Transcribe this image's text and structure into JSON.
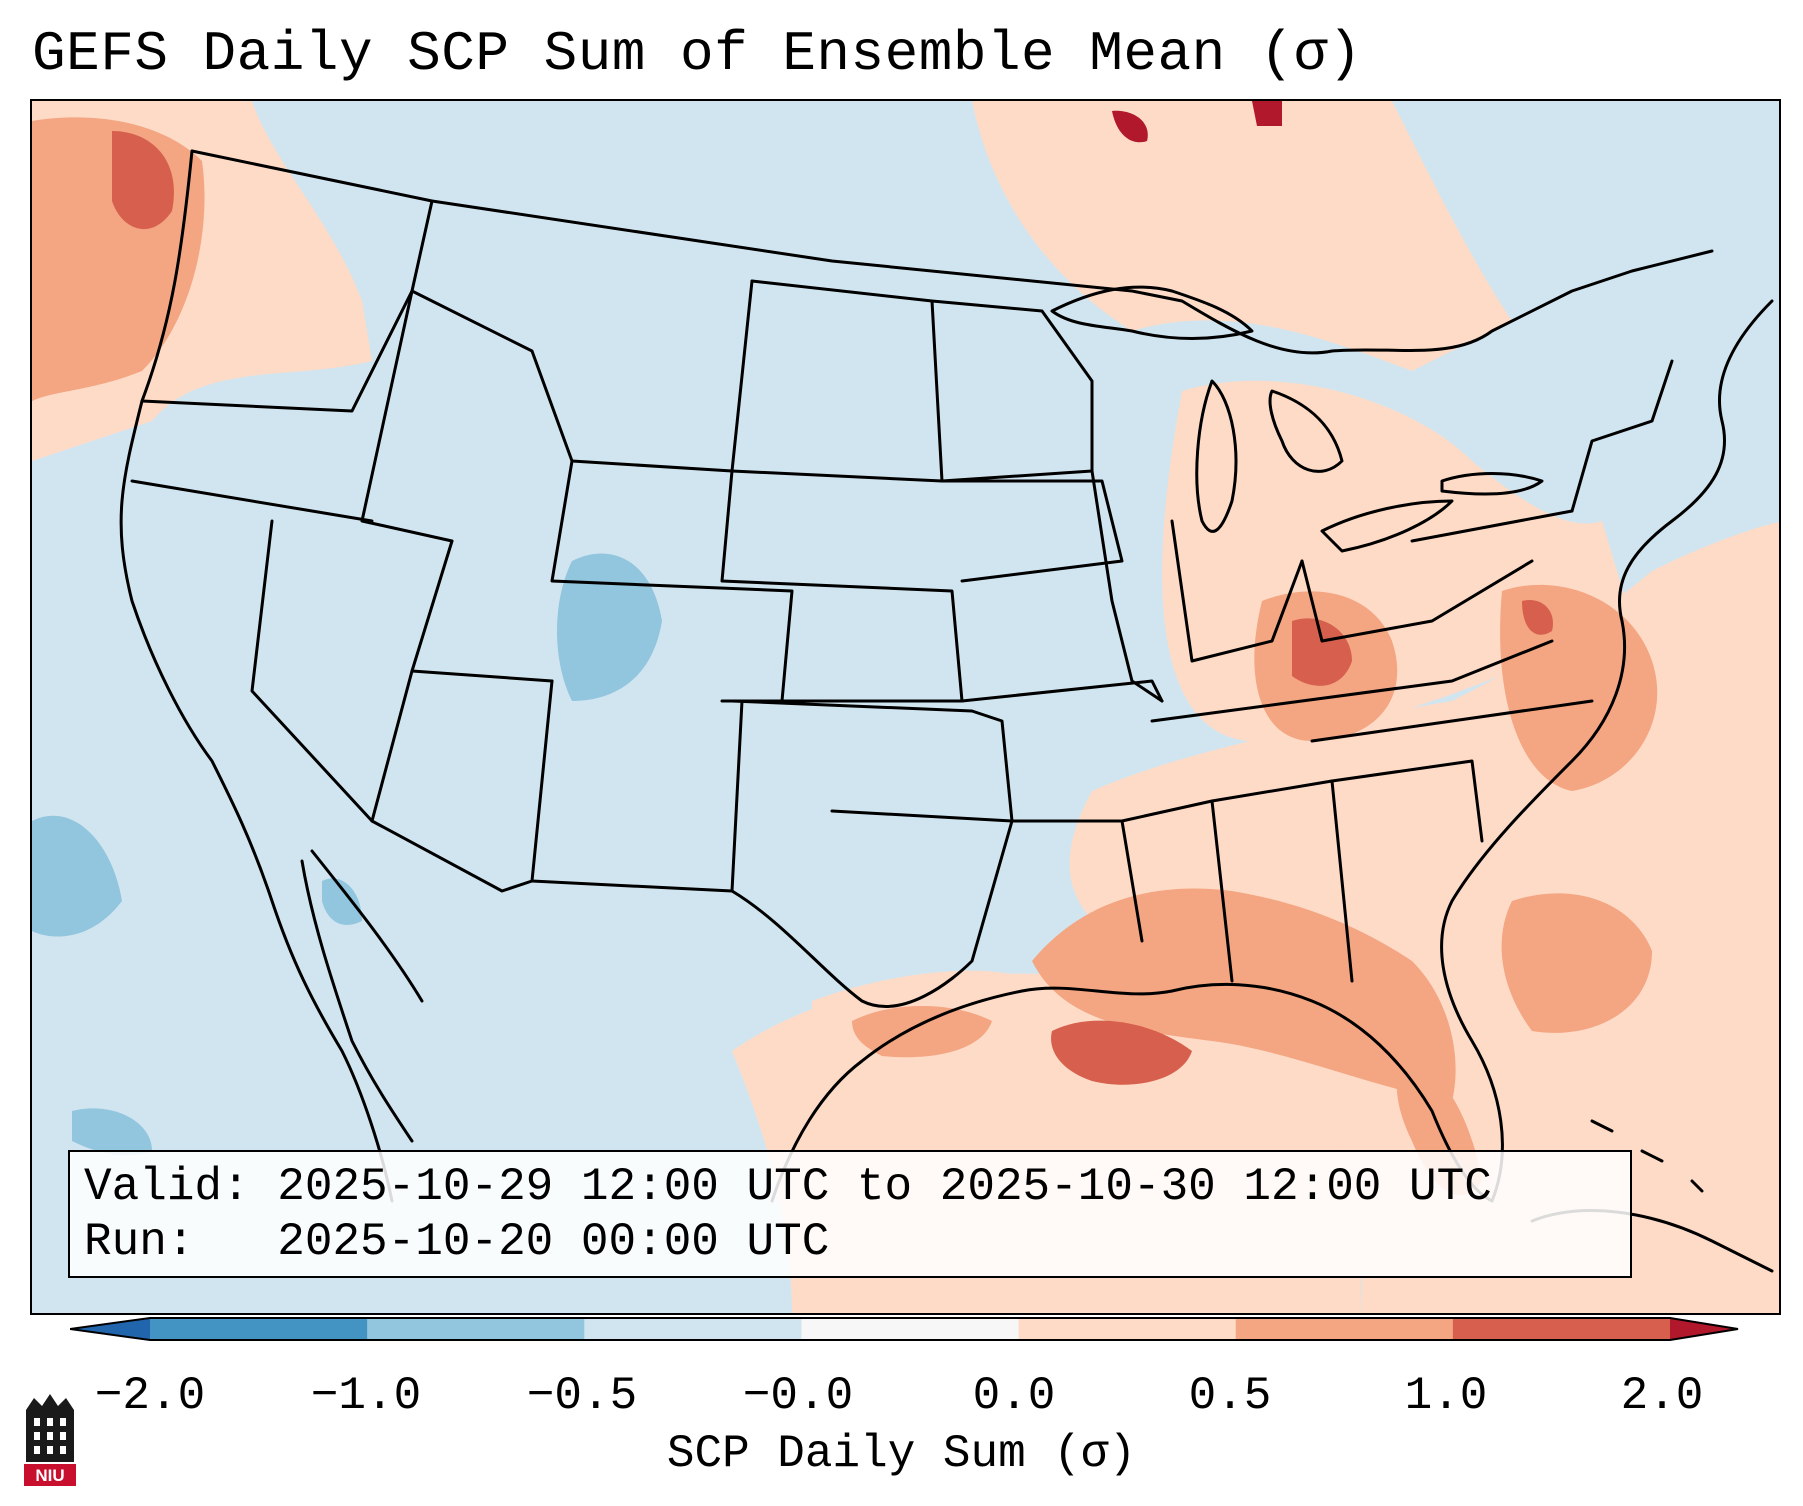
{
  "title": "GEFS Daily SCP Sum of Ensemble Mean (σ)",
  "info": {
    "valid_line": "Valid: 2025-10-29 12:00 UTC to 2025-10-30 12:00 UTC",
    "run_line": "Run:   2025-10-20 00:00 UTC"
  },
  "colorbar": {
    "label": "SCP Daily Sum (σ)",
    "ticks": [
      "−2.0",
      "−1.0",
      "−0.5",
      "−0.0",
      "0.0",
      "0.5",
      "1.0",
      "2.0"
    ],
    "colors": [
      "#2166ac",
      "#4393c3",
      "#92c5de",
      "#d1e5f0",
      "#f7f7f7",
      "#fddbc7",
      "#f4a582",
      "#d6604d",
      "#b2182b"
    ]
  },
  "logo": {
    "text": "NIU",
    "color": "#c8102e"
  }
}
